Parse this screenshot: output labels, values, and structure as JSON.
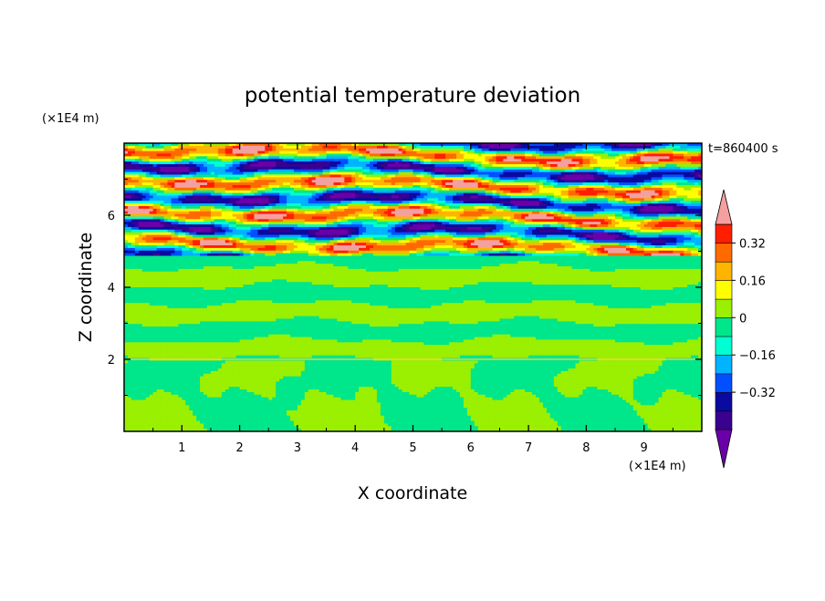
{
  "chart_data": {
    "type": "heatmap",
    "title": "potential temperature deviation",
    "xlabel": "X coordinate",
    "ylabel": "Z coordinate",
    "x_unit": "(×1E4 m)",
    "y_unit": "(×1E4 m)",
    "time_label": "t=860400 s",
    "xlim": [
      0,
      10
    ],
    "ylim": [
      0,
      8
    ],
    "xticks": [
      1,
      2,
      3,
      4,
      5,
      6,
      7,
      8,
      9
    ],
    "yticks": [
      2,
      4,
      6
    ],
    "colorbar": {
      "levels": [
        -0.48,
        -0.4,
        -0.32,
        -0.24,
        -0.16,
        -0.08,
        0,
        0.08,
        0.16,
        0.24,
        0.32,
        0.4
      ],
      "tick_labels": [
        "0.32",
        "0.16",
        "0",
        "−0.16",
        "−0.32"
      ],
      "tick_values": [
        0.32,
        0.16,
        0,
        -0.16,
        -0.32
      ],
      "colors": [
        "#6a00a8",
        "#3a0090",
        "#0a0aa0",
        "#0050ff",
        "#00b4ff",
        "#00ffd2",
        "#00e68a",
        "#9bef00",
        "#ffff00",
        "#ffb400",
        "#ff6a00",
        "#ff1e00",
        "#f5a0a0"
      ]
    },
    "regions": [
      {
        "z_range": [
          0,
          2
        ],
        "description": "lower layer with alternating light-green and green cells"
      },
      {
        "z_range": [
          2,
          5
        ],
        "description": "mid layer horizontal green/light-green bands"
      },
      {
        "z_range": [
          5,
          8
        ],
        "description": "upper layer strong layered stripes of purple, blue, pink, red, yellow, cyan"
      }
    ]
  }
}
